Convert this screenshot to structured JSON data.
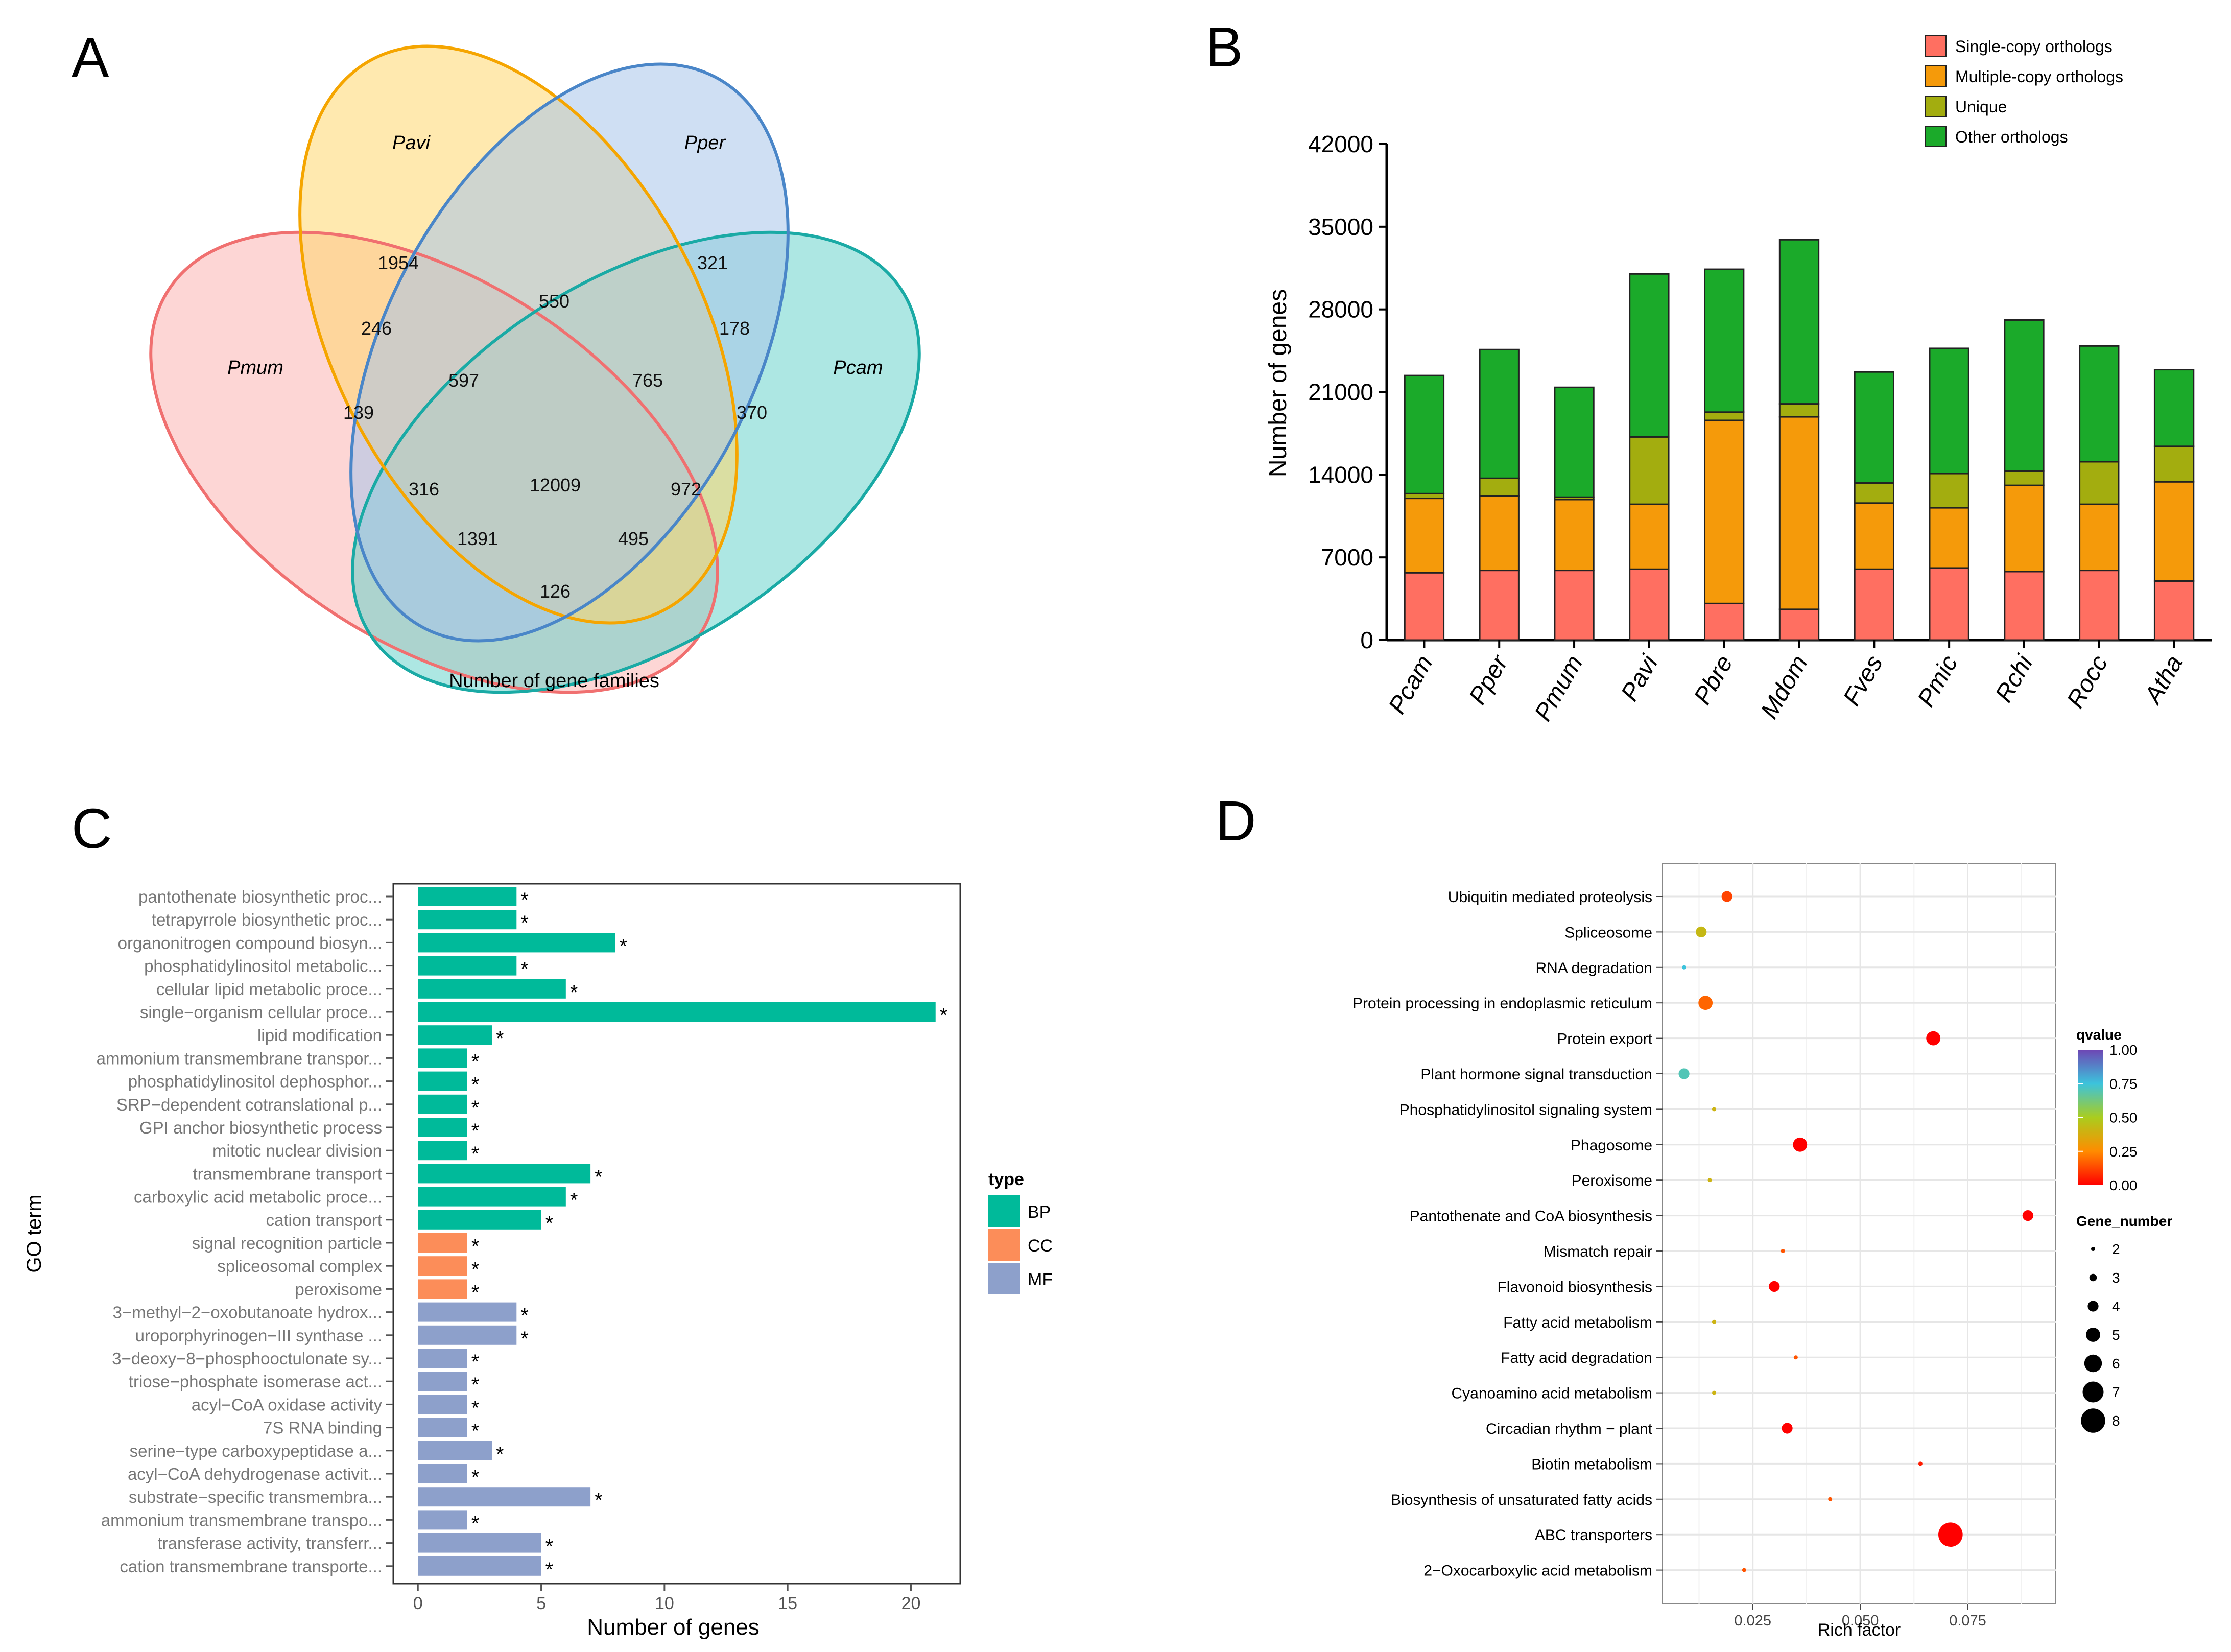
{
  "chart_data": [
    {
      "panel": "A",
      "type": "venn",
      "title": "Number of gene families",
      "sets": [
        {
          "name": "Pavi",
          "color": "#F5A500",
          "fill": "#FFD76E"
        },
        {
          "name": "Pper",
          "color": "#4A86C8",
          "fill": "#A8C4EA"
        },
        {
          "name": "Pmum",
          "color": "#F07070",
          "fill": "#FBB5B3"
        },
        {
          "name": "Pcam",
          "color": "#1AAAA5",
          "fill": "#5CCFC8"
        }
      ],
      "regions": [
        {
          "sets": [
            "Pavi"
          ],
          "value": "1954"
        },
        {
          "sets": [
            "Pper"
          ],
          "value": "321"
        },
        {
          "sets": [
            "Pavi",
            "Pper"
          ],
          "value": "550"
        },
        {
          "sets": [
            "Pmum",
            "Pavi"
          ],
          "value": "246"
        },
        {
          "sets": [
            "Pper",
            "Pcam"
          ],
          "value": "178"
        },
        {
          "sets": [
            "Pmum",
            "Pavi",
            "Pper"
          ],
          "value": "597"
        },
        {
          "sets": [
            "Pavi",
            "Pper",
            "Pcam"
          ],
          "value": "765"
        },
        {
          "sets": [
            "Pmum"
          ],
          "value": "139"
        },
        {
          "sets": [
            "Pcam"
          ],
          "value": "370"
        },
        {
          "sets": [
            "Pmum",
            "Pper"
          ],
          "value": "316"
        },
        {
          "sets": [
            "Pmum",
            "Pavi",
            "Pper",
            "Pcam"
          ],
          "value": "12009"
        },
        {
          "sets": [
            "Pavi",
            "Pcam"
          ],
          "value": "972"
        },
        {
          "sets": [
            "Pmum",
            "Pper",
            "Pcam"
          ],
          "value": "1391"
        },
        {
          "sets": [
            "Pmum",
            "Pavi",
            "Pcam"
          ],
          "value": "495"
        },
        {
          "sets": [
            "Pmum",
            "Pcam"
          ],
          "value": "126"
        }
      ]
    },
    {
      "panel": "B",
      "type": "bar",
      "stacked": true,
      "ylabel": "Number of genes",
      "ylim": [
        0,
        42000
      ],
      "yticks": [
        "0",
        "7000",
        "14000",
        "21000",
        "28000",
        "35000",
        "42000"
      ],
      "categories": [
        "Pcam",
        "Pper",
        "Pmum",
        "Pavi",
        "Pbre",
        "Mdom",
        "Fves",
        "Pmic",
        "Rchi",
        "Rocc",
        "Atha"
      ],
      "series": [
        {
          "name": "Single-copy orthologs",
          "color": "#FF6F61",
          "values": [
            5700,
            5900,
            5900,
            6000,
            3100,
            2600,
            6000,
            6100,
            5800,
            5900,
            5000
          ]
        },
        {
          "name": "Multiple-copy orthologs",
          "color": "#F59A0A",
          "values": [
            6300,
            6300,
            6000,
            5500,
            15500,
            16300,
            5600,
            5100,
            7300,
            5600,
            8400
          ]
        },
        {
          "name": "Unique",
          "color": "#A3AD0F",
          "values": [
            400,
            1500,
            200,
            5700,
            700,
            1100,
            1700,
            2900,
            1200,
            3600,
            3000
          ]
        },
        {
          "name": "Other orthologs",
          "color": "#1BAA2A",
          "values": [
            10000,
            10900,
            9300,
            13800,
            12100,
            13900,
            9400,
            10600,
            12800,
            9800,
            6500
          ]
        }
      ]
    },
    {
      "panel": "C",
      "type": "bar",
      "orientation": "horizontal",
      "xlabel": "Number of genes",
      "ylabel": "GO term",
      "xlim": [
        -1,
        22
      ],
      "xticks": [
        "0",
        "5",
        "10",
        "15",
        "20"
      ],
      "legend_title": "type",
      "legend": [
        {
          "name": "BP",
          "color": "#00BA9A"
        },
        {
          "name": "CC",
          "color": "#FC8D59"
        },
        {
          "name": "MF",
          "color": "#8DA0CB"
        }
      ],
      "bars": [
        {
          "label": "pantothenate biosynthetic proc...",
          "value": 4,
          "type": "BP",
          "mark": "*"
        },
        {
          "label": "tetrapyrrole biosynthetic proc...",
          "value": 4,
          "type": "BP",
          "mark": "*"
        },
        {
          "label": "organonitrogen compound biosyn...",
          "value": 8,
          "type": "BP",
          "mark": "*"
        },
        {
          "label": "phosphatidylinositol metabolic...",
          "value": 4,
          "type": "BP",
          "mark": "*"
        },
        {
          "label": "cellular lipid metabolic proce...",
          "value": 6,
          "type": "BP",
          "mark": "*"
        },
        {
          "label": "single−organism cellular proce...",
          "value": 21,
          "type": "BP",
          "mark": "*"
        },
        {
          "label": "lipid modification",
          "value": 3,
          "type": "BP",
          "mark": "*"
        },
        {
          "label": "ammonium transmembrane transpor...",
          "value": 2,
          "type": "BP",
          "mark": "*"
        },
        {
          "label": "phosphatidylinositol dephosphor...",
          "value": 2,
          "type": "BP",
          "mark": "*"
        },
        {
          "label": "SRP−dependent cotranslational p...",
          "value": 2,
          "type": "BP",
          "mark": "*"
        },
        {
          "label": "GPI anchor biosynthetic process",
          "value": 2,
          "type": "BP",
          "mark": "*"
        },
        {
          "label": "mitotic nuclear division",
          "value": 2,
          "type": "BP",
          "mark": "*"
        },
        {
          "label": "transmembrane transport",
          "value": 7,
          "type": "BP",
          "mark": "*"
        },
        {
          "label": "carboxylic acid metabolic proce...",
          "value": 6,
          "type": "BP",
          "mark": "*"
        },
        {
          "label": "cation transport",
          "value": 5,
          "type": "BP",
          "mark": "*"
        },
        {
          "label": "signal recognition particle",
          "value": 2,
          "type": "CC",
          "mark": "*"
        },
        {
          "label": "spliceosomal complex",
          "value": 2,
          "type": "CC",
          "mark": "*"
        },
        {
          "label": "peroxisome",
          "value": 2,
          "type": "CC",
          "mark": "*"
        },
        {
          "label": "3−methyl−2−oxobutanoate hydrox...",
          "value": 4,
          "type": "MF",
          "mark": "*"
        },
        {
          "label": "uroporphyrinogen−III synthase ...",
          "value": 4,
          "type": "MF",
          "mark": "*"
        },
        {
          "label": "3−deoxy−8−phosphooctulonate sy...",
          "value": 2,
          "type": "MF",
          "mark": "*"
        },
        {
          "label": "triose−phosphate isomerase act...",
          "value": 2,
          "type": "MF",
          "mark": "*"
        },
        {
          "label": "acyl−CoA oxidase activity",
          "value": 2,
          "type": "MF",
          "mark": "*"
        },
        {
          "label": "7S RNA binding",
          "value": 2,
          "type": "MF",
          "mark": "*"
        },
        {
          "label": "serine−type carboxypeptidase a...",
          "value": 3,
          "type": "MF",
          "mark": "*"
        },
        {
          "label": "acyl−CoA dehydrogenase activit...",
          "value": 2,
          "type": "MF",
          "mark": "*"
        },
        {
          "label": "substrate−specific transmembra...",
          "value": 7,
          "type": "MF",
          "mark": "*"
        },
        {
          "label": "ammonium transmembrane transpo...",
          "value": 2,
          "type": "MF",
          "mark": "*"
        },
        {
          "label": "transferase activity, transferr...",
          "value": 5,
          "type": "MF",
          "mark": "*"
        },
        {
          "label": "cation transmembrane transporte...",
          "value": 5,
          "type": "MF",
          "mark": "*"
        }
      ]
    },
    {
      "panel": "D",
      "type": "scatter",
      "xlabel": "Rich factor",
      "xlim": [
        0.004,
        0.0955
      ],
      "xticks": [
        "0.025",
        "0.050",
        "0.075"
      ],
      "color_legend": {
        "title": "qvalue",
        "ticks": [
          "1.00",
          "0.75",
          "0.50",
          "0.25",
          "0.00"
        ]
      },
      "size_legend": {
        "title": "Gene_number",
        "values": [
          "2",
          "3",
          "4",
          "5",
          "6",
          "7",
          "8"
        ]
      },
      "points": [
        {
          "label": "Ubiquitin mediated proteolysis",
          "x": 0.019,
          "genes": 4,
          "qvalue": 0.12
        },
        {
          "label": "Spliceosome",
          "x": 0.013,
          "genes": 4,
          "qvalue": 0.42
        },
        {
          "label": "RNA degradation",
          "x": 0.009,
          "genes": 2,
          "qvalue": 0.75
        },
        {
          "label": "Protein processing in endoplasmic reticulum",
          "x": 0.014,
          "genes": 5,
          "qvalue": 0.18
        },
        {
          "label": "Protein export",
          "x": 0.067,
          "genes": 5,
          "qvalue": 0.0
        },
        {
          "label": "Plant hormone signal transduction",
          "x": 0.009,
          "genes": 4,
          "qvalue": 0.7
        },
        {
          "label": "Phosphatidylinositol signaling system",
          "x": 0.016,
          "genes": 2,
          "qvalue": 0.4
        },
        {
          "label": "Phagosome",
          "x": 0.036,
          "genes": 5,
          "qvalue": 0.0
        },
        {
          "label": "Peroxisome",
          "x": 0.015,
          "genes": 2,
          "qvalue": 0.4
        },
        {
          "label": "Pantothenate and CoA biosynthesis",
          "x": 0.089,
          "genes": 4,
          "qvalue": 0.0
        },
        {
          "label": "Mismatch repair",
          "x": 0.032,
          "genes": 2,
          "qvalue": 0.15
        },
        {
          "label": "Flavonoid biosynthesis",
          "x": 0.03,
          "genes": 4,
          "qvalue": 0.0
        },
        {
          "label": "Fatty acid metabolism",
          "x": 0.016,
          "genes": 2,
          "qvalue": 0.4
        },
        {
          "label": "Fatty acid degradation",
          "x": 0.035,
          "genes": 2,
          "qvalue": 0.15
        },
        {
          "label": "Cyanoamino acid metabolism",
          "x": 0.016,
          "genes": 2,
          "qvalue": 0.4
        },
        {
          "label": "Circadian rhythm − plant",
          "x": 0.033,
          "genes": 4,
          "qvalue": 0.0
        },
        {
          "label": "Biotin metabolism",
          "x": 0.064,
          "genes": 2,
          "qvalue": 0.05
        },
        {
          "label": "Biosynthesis of unsaturated fatty acids",
          "x": 0.043,
          "genes": 2,
          "qvalue": 0.15
        },
        {
          "label": "ABC transporters",
          "x": 0.071,
          "genes": 8,
          "qvalue": 0.0
        },
        {
          "label": "2−Oxocarboxylic acid metabolism",
          "x": 0.023,
          "genes": 2,
          "qvalue": 0.15
        }
      ]
    }
  ],
  "panel_labels": [
    "A",
    "B",
    "C",
    "D"
  ]
}
